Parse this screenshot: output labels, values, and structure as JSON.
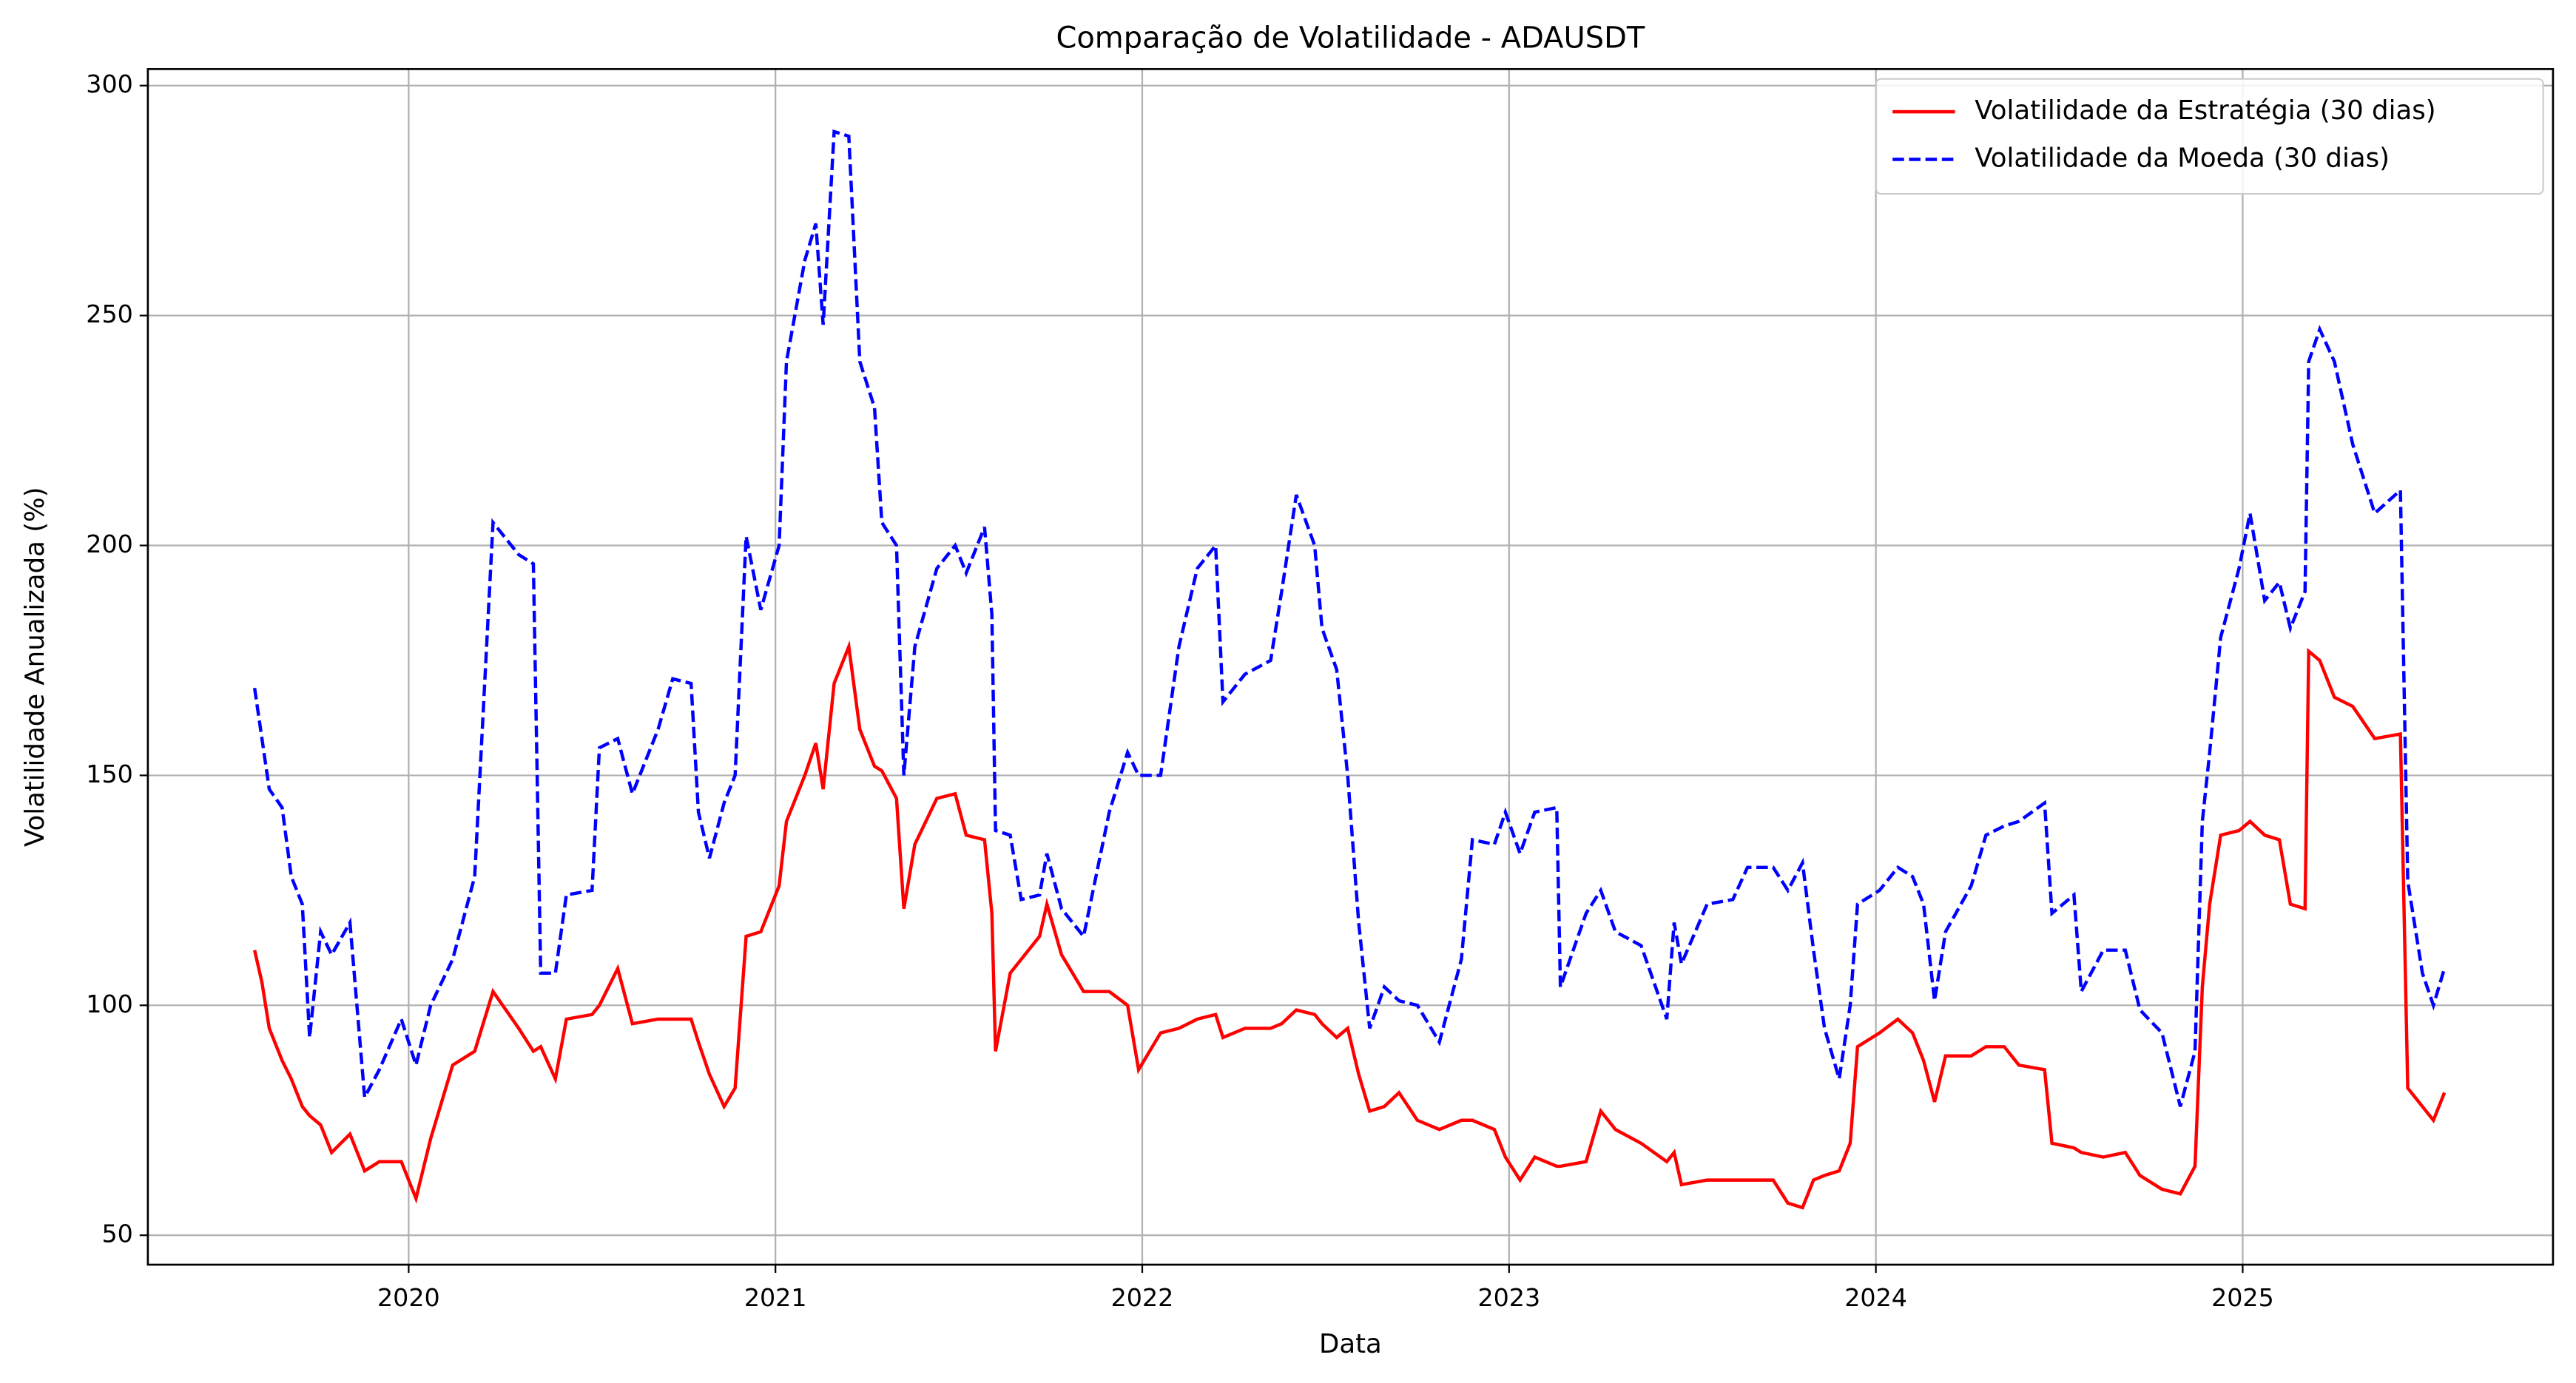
{
  "chart_data": {
    "type": "line",
    "title": "Comparação de Volatilidade - ADAUSDT",
    "xlabel": "Data",
    "ylabel": "Volatilidade Anualizada (%)",
    "x": [
      2019.58,
      2019.6,
      2019.62,
      2019.655,
      2019.68,
      2019.71,
      2019.73,
      2019.76,
      2019.79,
      2019.84,
      2019.88,
      2019.92,
      2019.98,
      2020.02,
      2020.06,
      2020.12,
      2020.18,
      2020.23,
      2020.3,
      2020.34,
      2020.36,
      2020.4,
      2020.43,
      2020.5,
      2020.52,
      2020.57,
      2020.61,
      2020.68,
      2020.72,
      2020.77,
      2020.79,
      2020.82,
      2020.86,
      2020.89,
      2020.92,
      2020.96,
      2021.01,
      2021.03,
      2021.08,
      2021.11,
      2021.13,
      2021.16,
      2021.2,
      2021.23,
      2021.27,
      2021.29,
      2021.33,
      2021.35,
      2021.38,
      2021.44,
      2021.49,
      2021.52,
      2021.57,
      2021.59,
      2021.6,
      2021.64,
      2021.67,
      2021.72,
      2021.74,
      2021.78,
      2021.84,
      2021.91,
      2021.96,
      2021.99,
      2022.05,
      2022.1,
      2022.15,
      2022.2,
      2022.22,
      2022.28,
      2022.35,
      2022.38,
      2022.42,
      2022.47,
      2022.49,
      2022.53,
      2022.56,
      2022.59,
      2022.62,
      2022.66,
      2022.7,
      2022.75,
      2022.81,
      2022.87,
      2022.9,
      2022.96,
      2022.99,
      2023.03,
      2023.07,
      2023.13,
      2023.14,
      2023.21,
      2023.25,
      2023.29,
      2023.36,
      2023.43,
      2023.45,
      2023.47,
      2023.54,
      2023.61,
      2023.65,
      2023.72,
      2023.76,
      2023.8,
      2023.83,
      2023.86,
      2023.9,
      2023.93,
      2023.95,
      2024.01,
      2024.06,
      2024.1,
      2024.13,
      2024.16,
      2024.19,
      2024.26,
      2024.3,
      2024.35,
      2024.39,
      2024.46,
      2024.48,
      2024.54,
      2024.56,
      2024.62,
      2024.68,
      2024.72,
      2024.78,
      2024.83,
      2024.87,
      2024.89,
      2024.91,
      2024.94,
      2024.99,
      2025.02,
      2025.06,
      2025.1,
      2025.13,
      2025.17,
      2025.18,
      2025.21,
      2025.25,
      2025.3,
      2025.36,
      2025.43,
      2025.45,
      2025.49,
      2025.52,
      2025.55
    ],
    "series": [
      {
        "name": "Volatilidade da Estratégia (30 dias)",
        "color": "#ff0000",
        "linestyle": "solid",
        "values": [
          112,
          105,
          95,
          88,
          84,
          78,
          76,
          74,
          68,
          72,
          64,
          66,
          66,
          58,
          71,
          87,
          90,
          103,
          95,
          90,
          91,
          84,
          97,
          98,
          100,
          108,
          96,
          97,
          97,
          97,
          92,
          85,
          78,
          82,
          115,
          116,
          126,
          140,
          150,
          157,
          147,
          170,
          178,
          160,
          152,
          151,
          145,
          121,
          135,
          145,
          146,
          137,
          136,
          120,
          90,
          107,
          110,
          115,
          122,
          111,
          103,
          103,
          100,
          86,
          94,
          95,
          97,
          98,
          93,
          95,
          95,
          96,
          99,
          98,
          96,
          93,
          95,
          85,
          77,
          78,
          81,
          75,
          73,
          75,
          75,
          73,
          67,
          62,
          67,
          65,
          65,
          66,
          77,
          73,
          70,
          66,
          68,
          61,
          62,
          62,
          62,
          62,
          57,
          56,
          62,
          63,
          64,
          70,
          91,
          94,
          97,
          94,
          88,
          79,
          89,
          89,
          91,
          91,
          87,
          86,
          70,
          69,
          68,
          67,
          68,
          63,
          60,
          59,
          65,
          104,
          122,
          137,
          138,
          140,
          137,
          136,
          122,
          121,
          177,
          175,
          167,
          165,
          158,
          159,
          82,
          78,
          75,
          81
        ]
      },
      {
        "name": "Volatilidade da Moeda (30 dias)",
        "color": "#0000ff",
        "linestyle": "dashed",
        "values": [
          169,
          158,
          147,
          143,
          128,
          122,
          93,
          116,
          111,
          118,
          80,
          86,
          97,
          87,
          100,
          110,
          128,
          205,
          198,
          196,
          107,
          107,
          124,
          125,
          156,
          158,
          146,
          160,
          171,
          170,
          142,
          132,
          144,
          150,
          202,
          186,
          200,
          240,
          262,
          270,
          248,
          290,
          289,
          240,
          230,
          205,
          200,
          150,
          178,
          195,
          200,
          194,
          204,
          185,
          138,
          137,
          123,
          124,
          133,
          121,
          115,
          142,
          155,
          150,
          150,
          178,
          195,
          200,
          166,
          172,
          175,
          190,
          211,
          200,
          182,
          173,
          150,
          118,
          95,
          104,
          101,
          100,
          92,
          110,
          136,
          135,
          142,
          133,
          142,
          143,
          104,
          120,
          125,
          116,
          113,
          97,
          118,
          109,
          122,
          123,
          130,
          130,
          125,
          131,
          112,
          95,
          84,
          100,
          122,
          125,
          130,
          128,
          122,
          101,
          116,
          126,
          137,
          139,
          140,
          144,
          120,
          124,
          103,
          112,
          112,
          99,
          94,
          78,
          90,
          140,
          155,
          180,
          195,
          207,
          188,
          192,
          182,
          190,
          240,
          247,
          240,
          222,
          207,
          212,
          127,
          107,
          100,
          108
        ]
      }
    ],
    "xlim": [
      2019.289,
      2025.846
    ],
    "ylim": [
      43.6,
      303.6
    ],
    "xticks": [
      2020,
      2021,
      2022,
      2023,
      2024,
      2025
    ],
    "yticks": [
      50,
      100,
      150,
      200,
      250,
      300
    ],
    "grid": true,
    "legend": "upper right"
  }
}
